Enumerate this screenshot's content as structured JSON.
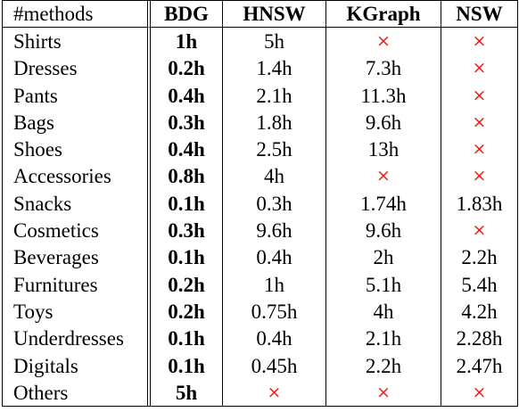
{
  "table": {
    "headers": [
      "#methods",
      "BDG",
      "HNSW",
      "KGraph",
      "NSW"
    ],
    "rows": [
      [
        "Shirts",
        "1h",
        "5h",
        "×",
        "×"
      ],
      [
        "Dresses",
        "0.2h",
        "1.4h",
        "7.3h",
        "×"
      ],
      [
        "Pants",
        "0.4h",
        "2.1h",
        "11.3h",
        "×"
      ],
      [
        "Bags",
        "0.3h",
        "1.8h",
        "9.6h",
        "×"
      ],
      [
        "Shoes",
        "0.4h",
        "2.5h",
        "13h",
        "×"
      ],
      [
        "Accessories",
        "0.8h",
        "4h",
        "×",
        "×"
      ],
      [
        "Snacks",
        "0.1h",
        "0.3h",
        "1.74h",
        "1.83h"
      ],
      [
        "Cosmetics",
        "0.3h",
        "9.6h",
        "9.6h",
        "×"
      ],
      [
        "Beverages",
        "0.1h",
        "0.4h",
        "2h",
        "2.2h"
      ],
      [
        "Furnitures",
        "0.2h",
        "1h",
        "5.1h",
        "5.4h"
      ],
      [
        "Toys",
        "0.2h",
        "0.75h",
        "4h",
        "4.2h"
      ],
      [
        "Underdresses",
        "0.1h",
        "0.4h",
        "2.1h",
        "2.28h"
      ],
      [
        "Digitals",
        "0.1h",
        "0.45h",
        "2.2h",
        "2.47h"
      ],
      [
        "Others",
        "5h",
        "×",
        "×",
        "×"
      ]
    ],
    "cross_color": "#e8251c"
  }
}
